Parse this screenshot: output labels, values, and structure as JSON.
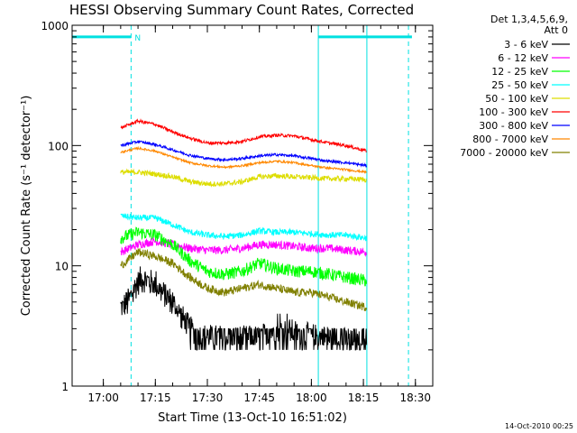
{
  "chart_data": {
    "type": "line",
    "title": "HESSI Observing Summary Count Rates, Corrected",
    "xlabel": "Start Time (13-Oct-10 16:51:02)",
    "ylabel": "Corrected Count Rate (s⁻¹ detector⁻¹)",
    "y_scale": "log",
    "ylim": [
      1,
      1000
    ],
    "xlim_minutes_after_1700": [
      -9,
      32
    ],
    "x_ticks": [
      {
        "value": 0,
        "label": "17:00"
      },
      {
        "value": 15,
        "label": "17:15"
      },
      {
        "value": 30,
        "label": "17:30"
      },
      {
        "value": 45,
        "label": "17:45"
      },
      {
        "value": 60,
        "label": "18:00"
      },
      {
        "value": 75,
        "label": "18:15"
      },
      {
        "value": 90,
        "label": "18:30"
      }
    ],
    "y_ticks": [
      {
        "value": 1,
        "label": "1"
      },
      {
        "value": 10,
        "label": "10"
      },
      {
        "value": 100,
        "label": "100"
      },
      {
        "value": 1000,
        "label": "1000"
      }
    ],
    "grid": false,
    "legend_position": "top-right",
    "legend_header": [
      "Det 1,3,4,5,6,9,",
      "Att 0"
    ],
    "night_flag": {
      "label": "N",
      "level": 800,
      "color": "#00e0e0",
      "segments": [
        [
          -9,
          8
        ],
        [
          62,
          89
        ]
      ],
      "boundaries_dashed": [
        8,
        88
      ],
      "boundaries_solid": [
        -9,
        62,
        76
      ]
    },
    "series": [
      {
        "name": "3 - 6 keV",
        "color": "#000000",
        "noise": 0.25,
        "x": [
          5,
          7,
          9,
          11,
          13,
          15,
          17,
          20,
          22,
          25,
          28,
          35,
          45,
          50,
          55,
          60,
          65,
          70,
          73,
          76
        ],
        "y": [
          4.5,
          5,
          6.5,
          8,
          7.5,
          7,
          6,
          5,
          4,
          3,
          2.6,
          2.5,
          2.5,
          3,
          2.8,
          2.6,
          2.5,
          2.4,
          2.2,
          2.5
        ]
      },
      {
        "name": "6 - 12 keV",
        "color": "#ff00ff",
        "noise": 0.08,
        "x": [
          5,
          10,
          15,
          20,
          25,
          30,
          35,
          40,
          45,
          50,
          55,
          60,
          65,
          70,
          76
        ],
        "y": [
          13,
          15,
          16,
          15,
          14,
          13.5,
          13.5,
          14,
          15,
          15,
          14.5,
          14,
          14,
          13.5,
          13
        ]
      },
      {
        "name": "12 - 25 keV",
        "color": "#00ff00",
        "noise": 0.12,
        "x": [
          5,
          10,
          15,
          20,
          25,
          30,
          35,
          40,
          45,
          50,
          55,
          60,
          65,
          70,
          76
        ],
        "y": [
          17,
          19,
          18,
          15,
          11,
          9,
          8.5,
          9,
          10.5,
          9.5,
          9,
          9,
          8.5,
          8,
          7.5
        ]
      },
      {
        "name": "25 - 50 keV",
        "color": "#00ffff",
        "noise": 0.06,
        "x": [
          5,
          10,
          15,
          20,
          25,
          30,
          35,
          40,
          45,
          50,
          55,
          60,
          65,
          70,
          76
        ],
        "y": [
          26,
          25,
          25,
          22,
          19,
          18,
          17.5,
          18,
          19.5,
          19,
          19,
          18.5,
          18,
          18,
          17
        ]
      },
      {
        "name": "50 - 100 keV",
        "color": "#dddd00",
        "noise": 0.05,
        "x": [
          5,
          10,
          15,
          20,
          25,
          30,
          35,
          40,
          45,
          50,
          55,
          60,
          65,
          70,
          76
        ],
        "y": [
          60,
          60,
          58,
          55,
          50,
          48,
          48,
          50,
          55,
          56,
          55,
          54,
          53,
          53,
          52
        ]
      },
      {
        "name": "100 - 300 keV",
        "color": "#ff0000",
        "noise": 0.03,
        "x": [
          5,
          10,
          15,
          20,
          25,
          30,
          35,
          40,
          45,
          50,
          55,
          60,
          65,
          70,
          76
        ],
        "y": [
          140,
          160,
          150,
          130,
          115,
          105,
          105,
          108,
          118,
          122,
          120,
          112,
          105,
          100,
          90
        ]
      },
      {
        "name": "300 - 800 keV",
        "color": "#0000ff",
        "noise": 0.025,
        "x": [
          5,
          10,
          15,
          20,
          25,
          30,
          35,
          40,
          45,
          50,
          55,
          60,
          65,
          70,
          76
        ],
        "y": [
          100,
          108,
          102,
          92,
          83,
          78,
          76,
          78,
          82,
          84,
          82,
          78,
          74,
          72,
          68
        ]
      },
      {
        "name": "800 - 7000 keV",
        "color": "#ff8800",
        "noise": 0.02,
        "x": [
          5,
          10,
          15,
          20,
          25,
          30,
          35,
          40,
          45,
          50,
          55,
          60,
          65,
          70,
          76
        ],
        "y": [
          88,
          95,
          90,
          80,
          72,
          68,
          66,
          68,
          72,
          74,
          72,
          68,
          65,
          63,
          60
        ]
      },
      {
        "name": "7000 - 20000 keV",
        "color": "#808000",
        "noise": 0.08,
        "x": [
          5,
          10,
          15,
          20,
          25,
          30,
          35,
          40,
          45,
          50,
          55,
          60,
          65,
          70,
          76
        ],
        "y": [
          10,
          13,
          12,
          10.5,
          8,
          6.5,
          6,
          6.5,
          7,
          6.5,
          6,
          6,
          5.5,
          5,
          4.5
        ]
      }
    ]
  },
  "footer_timestamp": "14-Oct-2010 00:25"
}
